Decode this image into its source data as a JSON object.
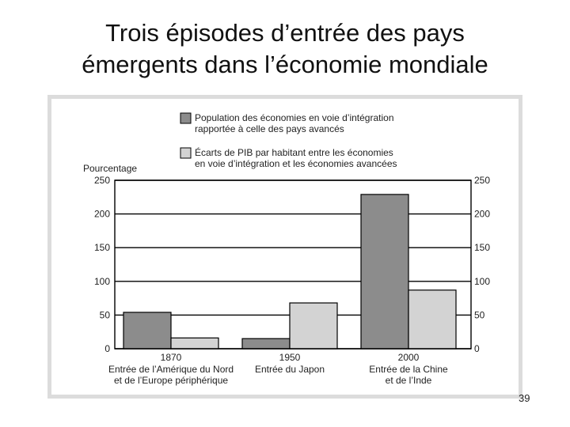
{
  "title_line1": "Trois épisodes d’entrée des pays",
  "title_line2": "émergents dans l’économie mondiale",
  "page_number": "39",
  "chart_data": {
    "type": "bar",
    "title": "",
    "ylabel": "Pourcentage",
    "ylim": [
      0,
      250
    ],
    "yticks": [
      0,
      50,
      100,
      150,
      200,
      250
    ],
    "grid": true,
    "categories": [
      {
        "year": "1870",
        "line1": "Entrée de l’Amérique du Nord",
        "line2": "et de l’Europe périphérique"
      },
      {
        "year": "1950",
        "line1": "Entrée du Japon",
        "line2": ""
      },
      {
        "year": "2000",
        "line1": "Entrée de la Chine",
        "line2": "et de l’Inde"
      }
    ],
    "series": [
      {
        "name_line1": "Population des économies en voie d’intégration",
        "name_line2": "rapportée à celle des pays avancés",
        "color": "#8c8c8c",
        "values": [
          54,
          15,
          229
        ]
      },
      {
        "name_line1": "Écarts de PIB par habitant entre les économies",
        "name_line2": "en voie d’intégration et les économies avancées",
        "color": "#d3d3d3",
        "values": [
          16,
          68,
          87
        ]
      }
    ],
    "legend_position": "top"
  }
}
